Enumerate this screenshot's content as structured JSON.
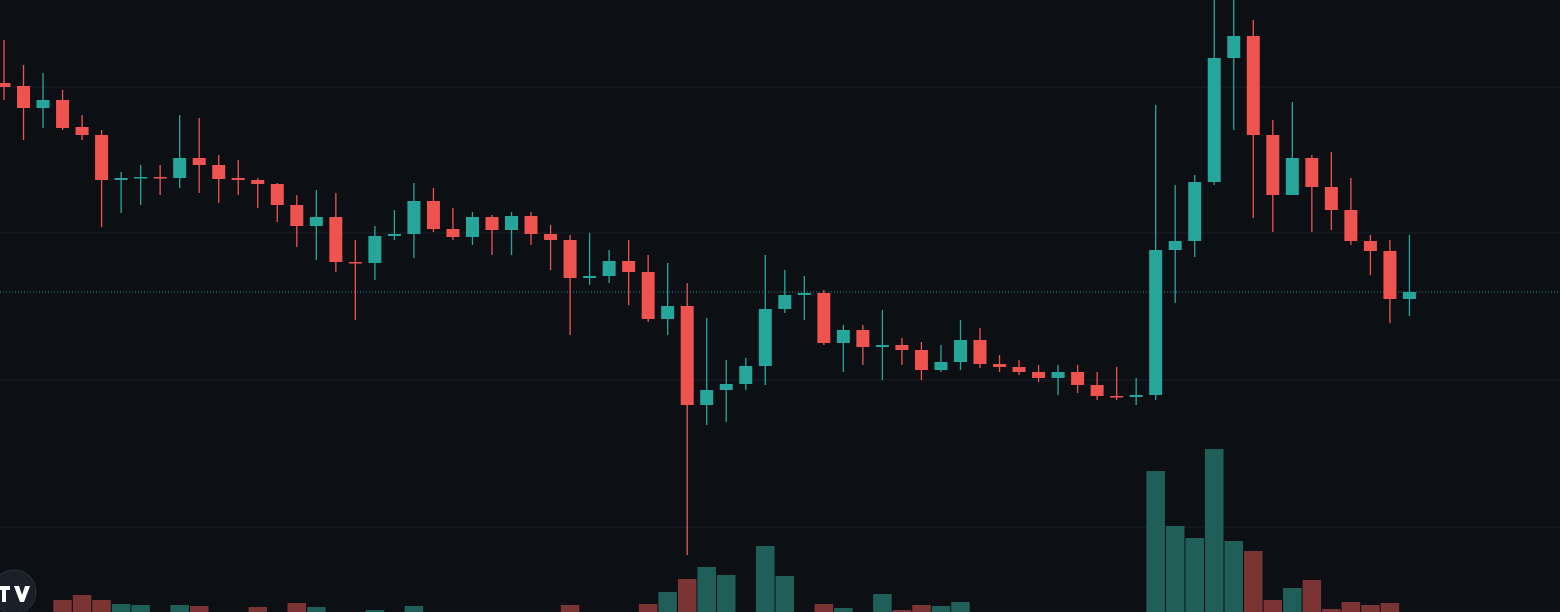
{
  "chart_data": {
    "type": "candlestick",
    "open": [
      529,
      526,
      504,
      512,
      485,
      477,
      432,
      434,
      435,
      434,
      454,
      447,
      434,
      432,
      428,
      407,
      386,
      395,
      350,
      349,
      376,
      378,
      411,
      383,
      375,
      395,
      382,
      396,
      378,
      372,
      334,
      336,
      351,
      340,
      293,
      306,
      207,
      222,
      228,
      246,
      303,
      317,
      319,
      269,
      282,
      265,
      267,
      262,
      242,
      250,
      272,
      248,
      245,
      240,
      234,
      240,
      227,
      216,
      215,
      217,
      362,
      371,
      430,
      554,
      576,
      477,
      417,
      454,
      425,
      402,
      371,
      361,
      313
    ],
    "close": [
      525,
      504,
      512,
      484,
      477,
      432,
      434,
      435,
      434,
      454,
      447,
      433,
      432,
      428,
      407,
      386,
      395,
      350,
      349,
      376,
      378,
      411,
      383,
      375,
      395,
      382,
      396,
      378,
      372,
      334,
      336,
      351,
      340,
      293,
      306,
      207,
      222,
      228,
      246,
      303,
      317,
      319,
      269,
      282,
      265,
      267,
      262,
      242,
      250,
      272,
      248,
      245,
      240,
      234,
      240,
      227,
      216,
      215,
      217,
      362,
      371,
      430,
      554,
      576,
      477,
      417,
      454,
      425,
      402,
      371,
      361,
      313,
      320
    ],
    "high": [
      572,
      547,
      539,
      522,
      497,
      482,
      440,
      447,
      447,
      497,
      494,
      457,
      452,
      434,
      429,
      417,
      422,
      419,
      372,
      386,
      402,
      429,
      424,
      404,
      400,
      397,
      400,
      400,
      387,
      377,
      379,
      362,
      372,
      357,
      349,
      329,
      294,
      252,
      254,
      357,
      342,
      336,
      322,
      287,
      287,
      302,
      274,
      270,
      267,
      292,
      284,
      257,
      252,
      247,
      247,
      247,
      240,
      245,
      234,
      507,
      427,
      437,
      612,
      612,
      592,
      492,
      510,
      457,
      460,
      434,
      377,
      372,
      377
    ],
    "low": [
      512,
      472,
      484,
      482,
      472,
      385,
      399,
      407,
      417,
      424,
      419,
      409,
      417,
      404,
      390,
      365,
      352,
      340,
      292,
      332,
      372,
      354,
      380,
      372,
      367,
      357,
      357,
      367,
      342,
      277,
      327,
      329,
      307,
      290,
      277,
      57,
      187,
      190,
      222,
      227,
      299,
      292,
      267,
      240,
      247,
      232,
      247,
      232,
      240,
      242,
      244,
      240,
      237,
      230,
      217,
      219,
      212,
      212,
      207,
      212,
      309,
      355,
      427,
      482,
      394,
      380,
      417,
      380,
      382,
      367,
      337,
      289,
      296
    ],
    "up_color": "#26a69a",
    "down_color": "#ef5350",
    "ylim": [
      0,
      612
    ],
    "yticks": [
      85,
      232,
      379,
      525
    ],
    "grid": true,
    "last_price_line": true,
    "volume": {
      "values": [
        0,
        0,
        0,
        12,
        17,
        12,
        8,
        7,
        0,
        7,
        6,
        0,
        0,
        5,
        0,
        9,
        5,
        0,
        0,
        2,
        0,
        6,
        0,
        0,
        0,
        0,
        0,
        0,
        0,
        7,
        0,
        0,
        0,
        8,
        20,
        33,
        45,
        37,
        0,
        66,
        36,
        0,
        8,
        4,
        0,
        18,
        2,
        7,
        6,
        10,
        0,
        0,
        0,
        0,
        0,
        0,
        0,
        0,
        0,
        141,
        86,
        74,
        163,
        71,
        61,
        12,
        24,
        32,
        3,
        10,
        7,
        9,
        0
      ],
      "ylim": [
        0,
        612
      ],
      "up_color": "#1f5f58",
      "down_color": "#7a3434"
    }
  }
}
